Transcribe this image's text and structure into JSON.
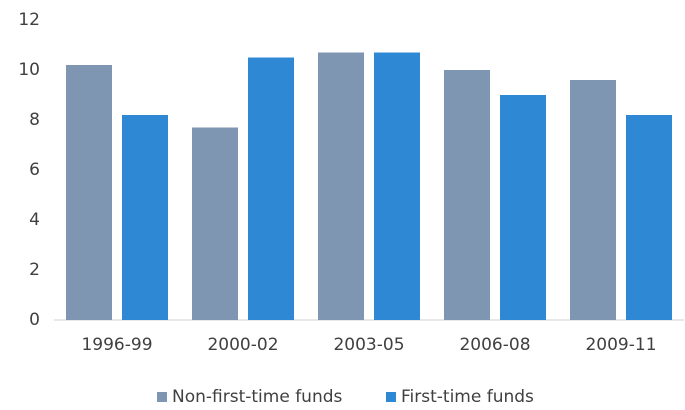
{
  "chart_data": {
    "type": "bar",
    "categories": [
      "1996-99",
      "2000-02",
      "2003-05",
      "2006-08",
      "2009-11"
    ],
    "series": [
      {
        "name": "Non-first-time funds",
        "color": "#7f96b2",
        "values": [
          10.2,
          7.7,
          10.7,
          10.0,
          9.6
        ]
      },
      {
        "name": "First-time funds",
        "color": "#2e88d4",
        "values": [
          8.2,
          10.5,
          10.7,
          9.0,
          8.2
        ]
      }
    ],
    "ylim": [
      0,
      12
    ],
    "yticks": [
      0,
      2,
      4,
      6,
      8,
      10,
      12
    ],
    "grid": false,
    "legend": "bottom"
  }
}
